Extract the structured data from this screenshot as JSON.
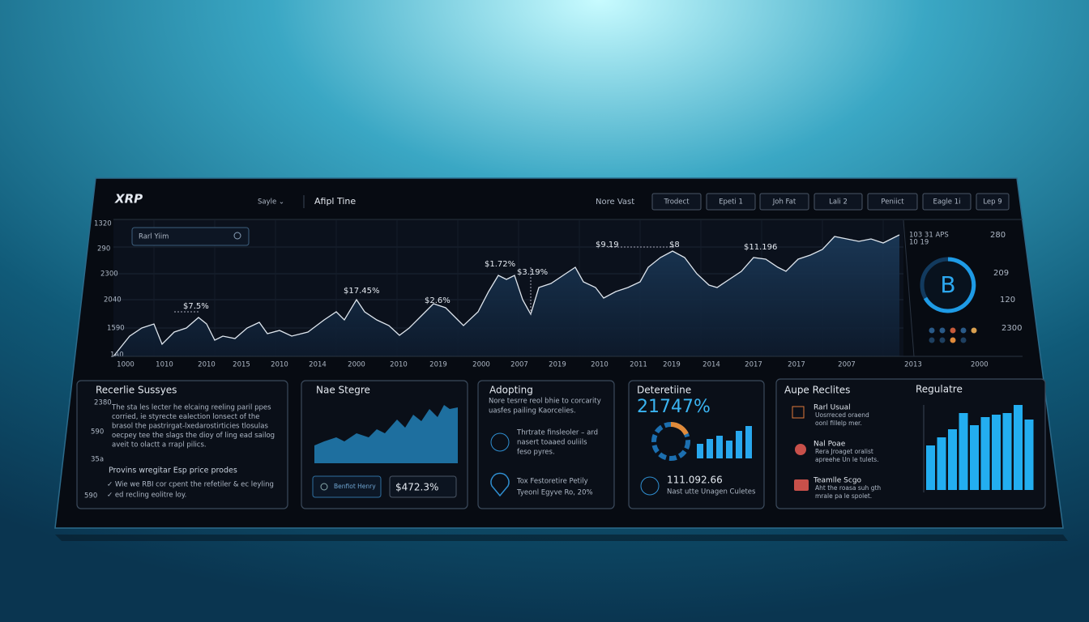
{
  "header": {
    "logo": "XRP",
    "menu": "Sayle ⌄",
    "title": "Afipl Tine",
    "label": "Nore Vast",
    "buttons": [
      "Trodect",
      "Epeti 1",
      "Joh Fat",
      "Lali 2",
      "Peniict",
      "Eagle 1i",
      "Lep 9"
    ]
  },
  "search": {
    "placeholder": "Rarl Yiim"
  },
  "main_chart": {
    "y_labels": [
      "1320",
      "290",
      "2300",
      "2040",
      "1590",
      "1A0"
    ],
    "x_labels": [
      "1000",
      "1010",
      "2010",
      "2015",
      "2010",
      "2014",
      "2000",
      "2010",
      "2019",
      "2000",
      "2007",
      "2019",
      "2010",
      "2011",
      "2019",
      "2014",
      "2017",
      "2017",
      "2007",
      "2013"
    ],
    "annotations": [
      "$7.5%",
      "$17.45%",
      "$2.6%",
      "$1.72%",
      "$3.19%",
      "$9.19",
      "$8",
      "$11.196"
    ]
  },
  "side_panel": {
    "title": "103 31 APS",
    "subtitle": "10 19",
    "badge": "B",
    "labels": [
      "280",
      "209",
      "120",
      "2300"
    ],
    "footer": "2000"
  },
  "cards": [
    {
      "title": "Recerlie Sussyes",
      "numbers": [
        "2380",
        "590",
        "35a",
        "590"
      ],
      "lines": [
        "The sta les lecter he elcaing reeling paril ppes",
        "corried, ie styrecte ealection lonsect of the",
        "brasol the pastrirgat-lxedarostirticies tlosulas",
        "oecpey tee the slags the dioy of ling ead sailog",
        "aveit to olactt a rrapl pilics."
      ],
      "subtitle": "Provins wregitar Esp price prodes",
      "checks": [
        "✓  Wie we RBI cor cpent the refetiler & ec leyling",
        "✓  ed recling eolitre loy."
      ]
    },
    {
      "title": "Nae Stegre",
      "button": "Benfiot Henry",
      "value": "$472.3%"
    },
    {
      "title": "Adopting",
      "lines": [
        "Nore tesrre reol bhie to corcarity",
        "uasfes pailing Kaorcelies."
      ],
      "item1": [
        "Thrtrate finsleoler – ard",
        "nasert toaaed ouliils",
        "feso pyres."
      ],
      "item2": [
        "Tox Festoretire Petily",
        "Tyeonl Egyve Ro, 20%"
      ]
    },
    {
      "title": "Deteretiine",
      "value": "21747%",
      "figure": "111.092.66",
      "caption": "Nast utte Unagen Culetes"
    },
    {
      "title": "Aupe Reclites",
      "items": [
        {
          "name": "Rarl Usual",
          "lines": [
            "Uosrreced oraend",
            "oonl fillelp mer."
          ]
        },
        {
          "name": "Nal Poae",
          "lines": [
            "Rera Jroaget oralist",
            "apreehe Un le tulets."
          ]
        },
        {
          "name": "Teamlle Scgo",
          "lines": [
            "Aht the roasa suh gth",
            "mrale pa le spolet."
          ]
        }
      ],
      "chart_title": "Regulatre"
    }
  ]
}
